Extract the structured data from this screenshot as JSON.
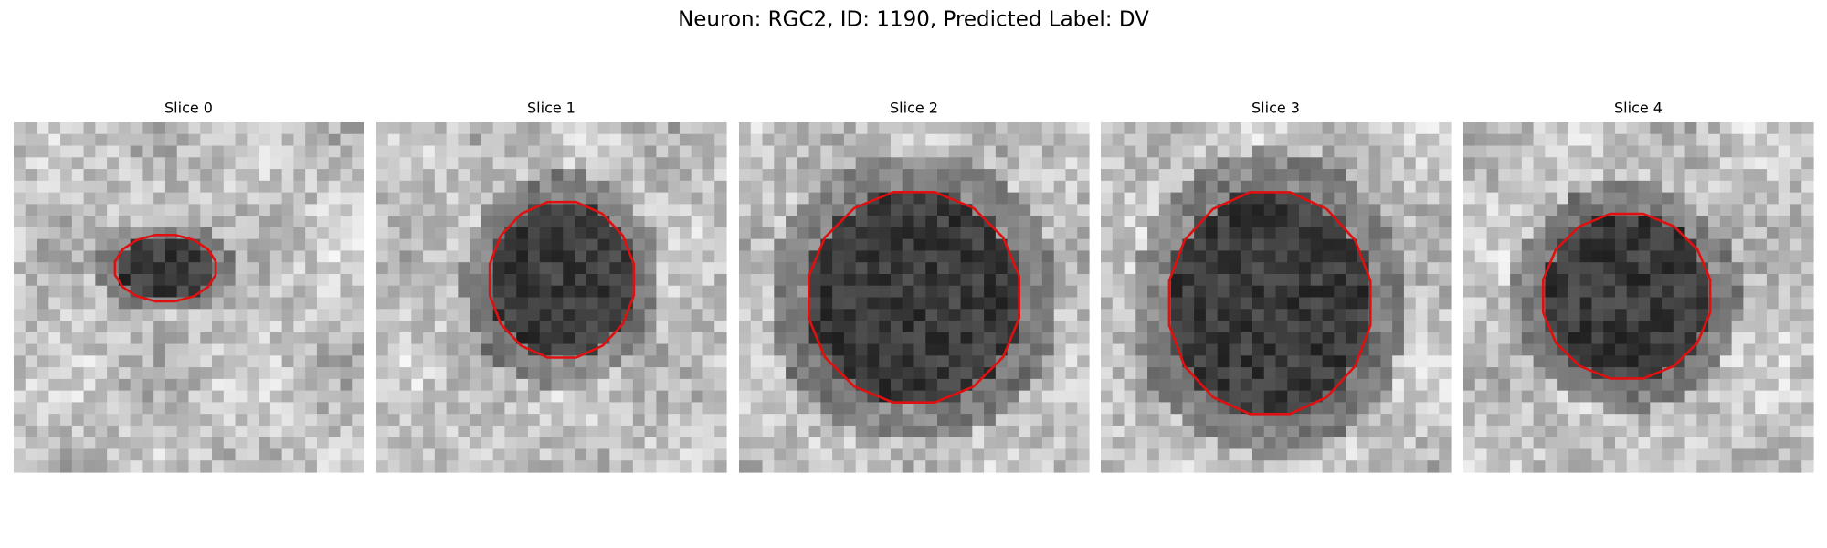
{
  "title": "Neuron: RGC2, ID: 1190, Predicted Label: DV",
  "panels": [
    {
      "title": "Slice 0"
    },
    {
      "title": "Slice 1"
    },
    {
      "title": "Slice 2"
    },
    {
      "title": "Slice 3"
    },
    {
      "title": "Slice 4"
    }
  ]
}
